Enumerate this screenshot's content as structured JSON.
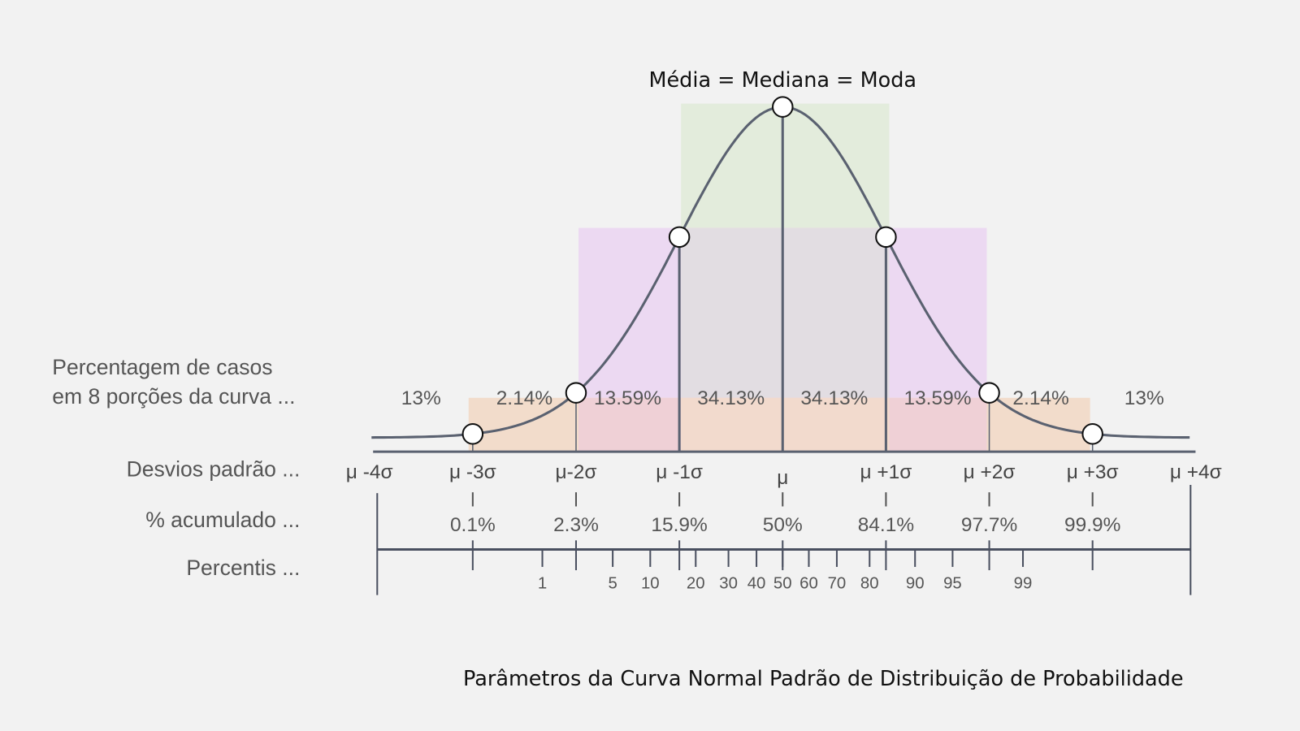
{
  "chart_data": {
    "type": "diagram",
    "title": "Parâmetros da Curva Normal Padrão de Distribuição de Probabilidade",
    "peak_label": "Média = Mediana = Moda",
    "row_labels": {
      "percent_cases_line1": "Percentagem de casos",
      "percent_cases_line2": "em 8 porções da curva ...",
      "std_devs": "Desvios padrão ...",
      "cumulative": "% acumulado ...",
      "percentiles": "Percentis ..."
    },
    "segments": [
      {
        "label": "13%",
        "z": -3.5
      },
      {
        "label": "2.14%",
        "z": -2.5
      },
      {
        "label": "13.59%",
        "z": -1.5
      },
      {
        "label": "34.13%",
        "z": -0.5
      },
      {
        "label": "34.13%",
        "z": 0.5
      },
      {
        "label": "13.59%",
        "z": 1.5
      },
      {
        "label": "2.14%",
        "z": 2.5
      },
      {
        "label": "13%",
        "z": 3.5
      }
    ],
    "sigma_ticks": [
      {
        "label": "μ -4σ",
        "z": -4
      },
      {
        "label": "μ -3σ",
        "z": -3
      },
      {
        "label": "μ-2σ",
        "z": -2
      },
      {
        "label": "μ -1σ",
        "z": -1
      },
      {
        "label": "μ",
        "z": 0
      },
      {
        "label": "μ +1σ",
        "z": 1
      },
      {
        "label": "μ +2σ",
        "z": 2
      },
      {
        "label": "μ +3σ",
        "z": 3
      },
      {
        "label": "μ +4σ",
        "z": 4
      }
    ],
    "cumulative": [
      {
        "label": "0.1%",
        "z": -3
      },
      {
        "label": "2.3%",
        "z": -2
      },
      {
        "label": "15.9%",
        "z": -1
      },
      {
        "label": "50%",
        "z": 0
      },
      {
        "label": "84.1%",
        "z": 1
      },
      {
        "label": "97.7%",
        "z": 2
      },
      {
        "label": "99.9%",
        "z": 3
      }
    ],
    "percentiles": [
      {
        "label": "1",
        "z": -2.326
      },
      {
        "label": "5",
        "z": -1.645
      },
      {
        "label": "10",
        "z": -1.2816
      },
      {
        "label": "20",
        "z": -0.8416
      },
      {
        "label": "30",
        "z": -0.5244
      },
      {
        "label": "40",
        "z": -0.2533
      },
      {
        "label": "50",
        "z": 0
      },
      {
        "label": "60",
        "z": 0.2533
      },
      {
        "label": "70",
        "z": 0.5244
      },
      {
        "label": "80",
        "z": 0.8416
      },
      {
        "label": "90",
        "z": 1.2816
      },
      {
        "label": "95",
        "z": 1.645
      },
      {
        "label": "99",
        "z": 2.326
      }
    ],
    "marked_points_z": [
      -3,
      -2,
      -1,
      0,
      1,
      2,
      3
    ],
    "colors": {
      "curve": "#5a6170",
      "band1": "#e3ecdc",
      "band2": "#ecd9f2",
      "band3": "#f2dccb",
      "band23": "#efd0d6",
      "center": "#e2dde2"
    }
  }
}
